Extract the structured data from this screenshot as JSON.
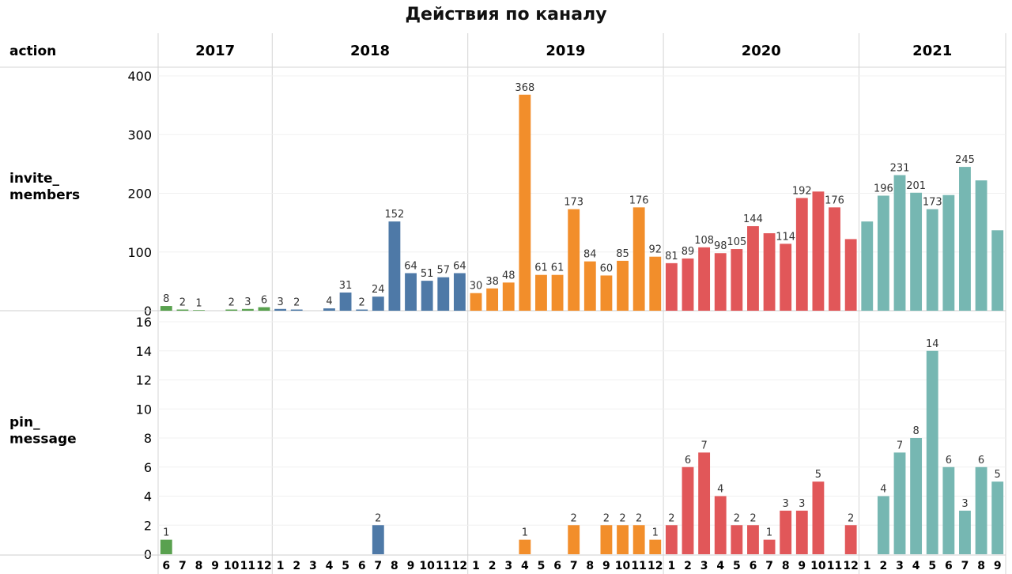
{
  "chart_data": {
    "type": "bar",
    "title": "Действия по каналу",
    "row_header": "action",
    "colors": {
      "2017": "#59a14f",
      "2018": "#4e79a7",
      "2019": "#f28e2b",
      "2020": "#e15759",
      "2021": "#76b7b2"
    },
    "years": [
      {
        "year": "2017",
        "months": [
          "6",
          "7",
          "8",
          "9",
          "10",
          "11",
          "12"
        ]
      },
      {
        "year": "2018",
        "months": [
          "1",
          "2",
          "3",
          "4",
          "5",
          "6",
          "7",
          "8",
          "9",
          "10",
          "11",
          "12"
        ]
      },
      {
        "year": "2019",
        "months": [
          "1",
          "2",
          "3",
          "4",
          "5",
          "6",
          "7",
          "8",
          "9",
          "10",
          "11",
          "12"
        ]
      },
      {
        "year": "2020",
        "months": [
          "1",
          "2",
          "3",
          "4",
          "5",
          "6",
          "7",
          "8",
          "9",
          "10",
          "11",
          "12"
        ]
      },
      {
        "year": "2021",
        "months": [
          "1",
          "2",
          "3",
          "4",
          "5",
          "6",
          "7",
          "8",
          "9"
        ]
      }
    ],
    "series": [
      {
        "name": "invite_\nmembers",
        "label_lines": [
          "invite_",
          "members"
        ],
        "ylim": [
          0,
          400
        ],
        "yticks": [
          "0",
          "100",
          "200",
          "300",
          "400"
        ],
        "values": [
          [
            8,
            2,
            1,
            0,
            2,
            3,
            6
          ],
          [
            3,
            2,
            0,
            4,
            31,
            2,
            24,
            152,
            64,
            51,
            57,
            64
          ],
          [
            30,
            38,
            48,
            368,
            61,
            61,
            173,
            84,
            60,
            85,
            176,
            92
          ],
          [
            81,
            89,
            108,
            98,
            105,
            144,
            132,
            114,
            192,
            203,
            176,
            122
          ],
          [
            152,
            196,
            231,
            201,
            173,
            197,
            245,
            222,
            137
          ]
        ],
        "labels": [
          [
            "8",
            "2",
            "1",
            "",
            "2",
            "3",
            "6"
          ],
          [
            "3",
            "2",
            "",
            "4",
            "31",
            "2",
            "24",
            "152",
            "64",
            "51",
            "57",
            "64"
          ],
          [
            "30",
            "38",
            "48",
            "368",
            "61",
            "61",
            "173",
            "84",
            "60",
            "85",
            "176",
            "92"
          ],
          [
            "81",
            "89",
            "108",
            "98",
            "105",
            "144",
            "",
            "114",
            "192",
            "",
            "176",
            ""
          ],
          [
            "",
            "196",
            "231",
            "201",
            "173",
            "",
            "245",
            "",
            ""
          ]
        ]
      },
      {
        "name": "pin_\nmessage",
        "label_lines": [
          "pin_",
          "message"
        ],
        "ylim": [
          0,
          16
        ],
        "yticks": [
          "0",
          "2",
          "4",
          "6",
          "8",
          "10",
          "12",
          "14",
          "16"
        ],
        "values": [
          [
            1,
            0,
            0,
            0,
            0,
            0,
            0
          ],
          [
            0,
            0,
            0,
            0,
            0,
            0,
            2,
            0,
            0,
            0,
            0,
            0
          ],
          [
            0,
            0,
            0,
            1,
            0,
            0,
            2,
            0,
            2,
            2,
            2,
            1
          ],
          [
            2,
            6,
            7,
            4,
            2,
            2,
            1,
            3,
            3,
            5,
            0,
            2
          ],
          [
            0,
            4,
            7,
            8,
            14,
            6,
            3,
            6,
            5
          ]
        ],
        "labels": [
          [
            "1",
            "",
            "",
            "",
            "",
            "",
            ""
          ],
          [
            "",
            "",
            "",
            "",
            "",
            "",
            "2",
            "",
            "",
            "",
            "",
            ""
          ],
          [
            "",
            "",
            "",
            "1",
            "",
            "",
            "2",
            "",
            "2",
            "2",
            "2",
            "1"
          ],
          [
            "2",
            "6",
            "7",
            "4",
            "2",
            "2",
            "1",
            "3",
            "3",
            "5",
            "",
            "2"
          ],
          [
            "",
            "4",
            "7",
            "8",
            "14",
            "6",
            "3",
            "6",
            "5"
          ]
        ]
      }
    ]
  }
}
